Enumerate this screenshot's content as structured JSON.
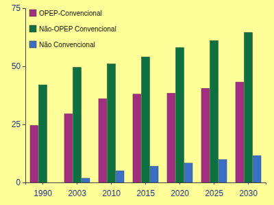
{
  "chart_data": {
    "type": "bar",
    "categories": [
      "1990",
      "2003",
      "2010",
      "2015",
      "2020",
      "2025",
      "2030"
    ],
    "series": [
      {
        "name": "OPEP-Convencional",
        "color": "#a0307f",
        "values": [
          24.5,
          29.5,
          36,
          38,
          38.4,
          40.5,
          43.2
        ]
      },
      {
        "name": "Não-OPEP Convencional",
        "color": "#0e7040",
        "values": [
          42,
          49.5,
          51,
          54,
          58,
          61,
          64.5
        ]
      },
      {
        "name": "Não Convencional",
        "color": "#3a6fc4",
        "values": [
          0,
          1.8,
          5,
          7,
          8.3,
          9.8,
          11.5
        ]
      }
    ],
    "ylim": [
      0,
      75
    ],
    "yticks": [
      0,
      25,
      50,
      75
    ],
    "grid": false,
    "legend": "upper left"
  }
}
